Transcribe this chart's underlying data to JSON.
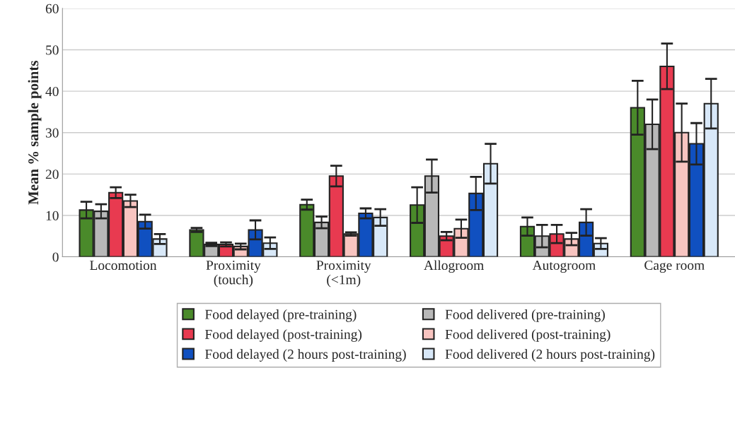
{
  "chart_data": {
    "type": "bar",
    "ylabel": "Mean % sample points",
    "categories": [
      "Locomotion",
      "Proximity\n(touch)",
      "Proximity\n(<1m)",
      "Allogroom",
      "Autogroom",
      "Cage room"
    ],
    "ylim": [
      0,
      60
    ],
    "yticks": [
      0,
      10,
      20,
      30,
      40,
      50,
      60
    ],
    "grid": "y",
    "legend": "bottom",
    "series": [
      {
        "name": "Food delayed (pre-training)",
        "color": "#4a8a2a",
        "values": [
          11.3,
          6.5,
          12.6,
          12.5,
          7.3,
          36
        ],
        "errors": [
          2,
          0.5,
          1.2,
          4.3,
          2.2,
          6.5
        ]
      },
      {
        "name": "Food delivered (pre-training)",
        "color": "#b8b8b8",
        "values": [
          11,
          3,
          8.3,
          19.5,
          5,
          32
        ],
        "errors": [
          1.7,
          0.4,
          1.4,
          4,
          2.7,
          6
        ]
      },
      {
        "name": "Food delayed (post-training)",
        "color": "#e83a50",
        "values": [
          15.5,
          3,
          19.5,
          5,
          5.5,
          46
        ],
        "errors": [
          1.3,
          0.5,
          2.5,
          1,
          2.2,
          5.5
        ]
      },
      {
        "name": "Food delivered (post-training)",
        "color": "#f8c4c0",
        "values": [
          13.5,
          2.5,
          5.5,
          6.8,
          4.3,
          30
        ],
        "errors": [
          1.5,
          0.7,
          0.4,
          2.2,
          1.5,
          7
        ]
      },
      {
        "name": "Food delayed (2 hours post-training)",
        "color": "#1050c0",
        "values": [
          8.5,
          6.5,
          10.5,
          15.3,
          8.3,
          27.3
        ],
        "errors": [
          1.7,
          2.3,
          1.2,
          4,
          3.2,
          5
        ]
      },
      {
        "name": "Food delivered (2 hours post-training)",
        "color": "#d8e8f8",
        "values": [
          4.3,
          3.3,
          9.5,
          22.5,
          3.2,
          37
        ],
        "errors": [
          1.2,
          1.4,
          2,
          4.8,
          1.3,
          6
        ]
      }
    ]
  }
}
